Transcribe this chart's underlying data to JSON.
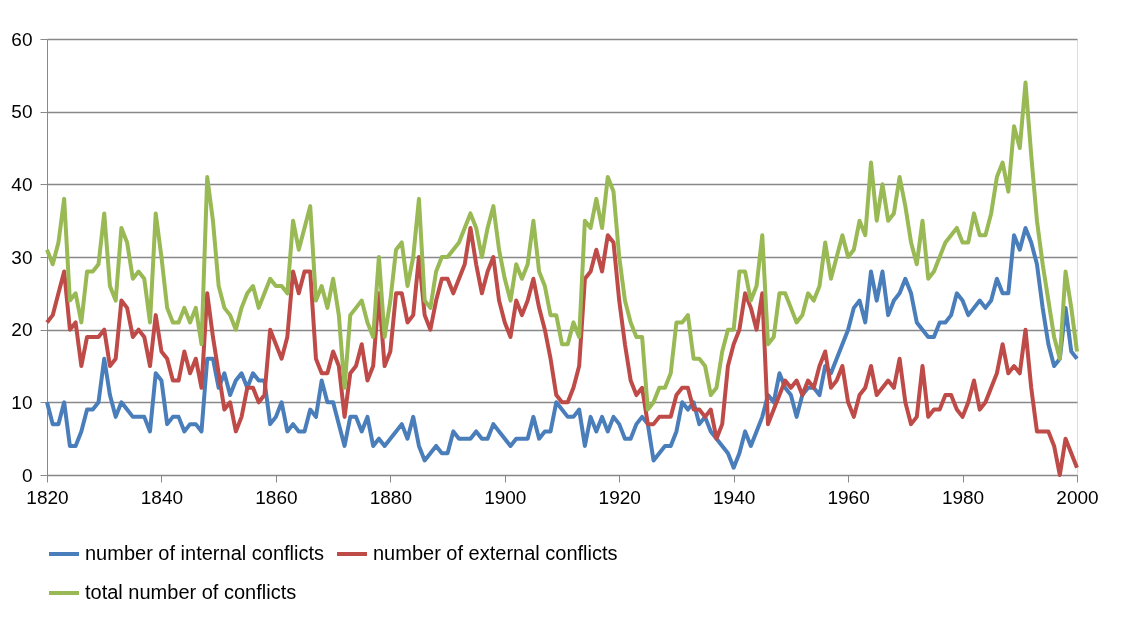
{
  "chart_data": {
    "type": "line",
    "x": [
      1820,
      1821,
      1822,
      1823,
      1824,
      1825,
      1826,
      1827,
      1828,
      1829,
      1830,
      1831,
      1832,
      1833,
      1834,
      1835,
      1836,
      1837,
      1838,
      1839,
      1840,
      1841,
      1842,
      1843,
      1844,
      1845,
      1846,
      1847,
      1848,
      1849,
      1850,
      1851,
      1852,
      1853,
      1854,
      1855,
      1856,
      1857,
      1858,
      1859,
      1860,
      1861,
      1862,
      1863,
      1864,
      1865,
      1866,
      1867,
      1868,
      1869,
      1870,
      1871,
      1872,
      1873,
      1874,
      1875,
      1876,
      1877,
      1878,
      1879,
      1880,
      1881,
      1882,
      1883,
      1884,
      1885,
      1886,
      1887,
      1888,
      1889,
      1890,
      1891,
      1892,
      1893,
      1894,
      1895,
      1896,
      1897,
      1898,
      1899,
      1900,
      1901,
      1902,
      1903,
      1904,
      1905,
      1906,
      1907,
      1908,
      1909,
      1910,
      1911,
      1912,
      1913,
      1914,
      1915,
      1916,
      1917,
      1918,
      1919,
      1920,
      1921,
      1922,
      1923,
      1924,
      1925,
      1926,
      1927,
      1928,
      1929,
      1930,
      1931,
      1932,
      1933,
      1934,
      1935,
      1936,
      1937,
      1938,
      1939,
      1940,
      1941,
      1942,
      1943,
      1944,
      1945,
      1946,
      1947,
      1948,
      1949,
      1950,
      1951,
      1952,
      1953,
      1954,
      1955,
      1956,
      1957,
      1958,
      1959,
      1960,
      1961,
      1962,
      1963,
      1964,
      1965,
      1966,
      1967,
      1968,
      1969,
      1970,
      1971,
      1972,
      1973,
      1974,
      1975,
      1976,
      1977,
      1978,
      1979,
      1980,
      1981,
      1982,
      1983,
      1984,
      1985,
      1986,
      1987,
      1988,
      1989,
      1990,
      1991,
      1992,
      1993,
      1994,
      1995,
      1996,
      1997,
      1998,
      1999,
      2000
    ],
    "series": [
      {
        "name": "number of internal conflicts",
        "color": "#4a7ebb",
        "values": [
          10,
          7,
          7,
          10,
          4,
          4,
          6,
          9,
          9,
          10,
          16,
          11,
          8,
          10,
          9,
          8,
          8,
          8,
          6,
          14,
          13,
          7,
          8,
          8,
          6,
          7,
          7,
          6,
          16,
          16,
          12,
          14,
          11,
          13,
          14,
          12,
          14,
          13,
          13,
          7,
          8,
          10,
          6,
          7,
          6,
          6,
          9,
          8,
          13,
          10,
          10,
          7,
          4,
          8,
          8,
          6,
          8,
          4,
          5,
          4,
          5,
          6,
          7,
          5,
          8,
          4,
          2,
          3,
          4,
          3,
          3,
          6,
          5,
          5,
          5,
          6,
          5,
          5,
          7,
          6,
          5,
          4,
          5,
          5,
          5,
          8,
          5,
          6,
          6,
          10,
          9,
          8,
          8,
          9,
          4,
          8,
          6,
          8,
          6,
          8,
          7,
          5,
          5,
          7,
          8,
          7,
          2,
          3,
          4,
          4,
          6,
          10,
          9,
          10,
          7,
          8,
          6,
          5,
          4,
          3,
          1,
          3,
          6,
          4,
          6,
          8,
          11,
          10,
          14,
          12,
          11,
          8,
          11,
          12,
          12,
          11,
          15,
          14,
          16,
          18,
          20,
          23,
          24,
          21,
          28,
          24,
          28,
          22,
          24,
          25,
          27,
          25,
          21,
          20,
          19,
          19,
          21,
          21,
          22,
          25,
          24,
          22,
          23,
          24,
          23,
          24,
          27,
          25,
          25,
          33,
          31,
          34,
          32,
          29,
          23,
          18,
          15,
          16,
          23,
          17,
          16
        ]
      },
      {
        "name": "number of external conflicts",
        "color": "#be4b48",
        "values": [
          21,
          22,
          25,
          28,
          20,
          21,
          15,
          19,
          19,
          19,
          20,
          15,
          16,
          24,
          23,
          19,
          20,
          19,
          15,
          22,
          17,
          16,
          13,
          13,
          17,
          14,
          16,
          12,
          25,
          19,
          14,
          9,
          10,
          6,
          8,
          12,
          12,
          10,
          11,
          20,
          18,
          16,
          19,
          28,
          25,
          28,
          28,
          16,
          14,
          14,
          17,
          15,
          8,
          14,
          15,
          18,
          13,
          15,
          25,
          15,
          17,
          25,
          25,
          21,
          22,
          30,
          22,
          20,
          24,
          27,
          27,
          25,
          27,
          29,
          34,
          29,
          25,
          28,
          30,
          24,
          21,
          19,
          24,
          22,
          24,
          27,
          23,
          20,
          16,
          11,
          10,
          10,
          12,
          15,
          27,
          28,
          31,
          28,
          33,
          32,
          24,
          18,
          13,
          11,
          12,
          7,
          7,
          8,
          8,
          8,
          11,
          12,
          12,
          9,
          9,
          8,
          9,
          5,
          7,
          15,
          18,
          20,
          25,
          23,
          20,
          25,
          7,
          9,
          11,
          13,
          12,
          13,
          11,
          13,
          12,
          15,
          17,
          12,
          13,
          15,
          10,
          8,
          11,
          12,
          15,
          11,
          12,
          13,
          12,
          16,
          10,
          7,
          8,
          15,
          8,
          9,
          9,
          11,
          11,
          9,
          8,
          10,
          13,
          9,
          10,
          12,
          14,
          18,
          14,
          15,
          14,
          20,
          12,
          6,
          6,
          6,
          4,
          0,
          5,
          3,
          1
        ]
      },
      {
        "name": "total number of conflicts",
        "color": "#98b954",
        "values": [
          31,
          29,
          32,
          38,
          24,
          25,
          21,
          28,
          28,
          29,
          36,
          26,
          24,
          34,
          32,
          27,
          28,
          27,
          21,
          36,
          30,
          23,
          21,
          21,
          23,
          21,
          23,
          18,
          41,
          35,
          26,
          23,
          22,
          20,
          23,
          25,
          26,
          23,
          25,
          27,
          26,
          26,
          25,
          35,
          31,
          34,
          37,
          24,
          26,
          23,
          27,
          22,
          12,
          22,
          23,
          24,
          21,
          19,
          30,
          19,
          24,
          31,
          32,
          26,
          30,
          38,
          24,
          23,
          28,
          30,
          30,
          31,
          32,
          34,
          36,
          34,
          30,
          34,
          37,
          31,
          27,
          24,
          29,
          27,
          29,
          35,
          28,
          26,
          22,
          22,
          18,
          18,
          21,
          19,
          35,
          34,
          38,
          34,
          41,
          39,
          30,
          24,
          21,
          19,
          19,
          9,
          10,
          12,
          12,
          14,
          21,
          21,
          22,
          16,
          16,
          15,
          11,
          12,
          17,
          20,
          20,
          28,
          28,
          24,
          26,
          33,
          18,
          19,
          25,
          25,
          23,
          21,
          22,
          25,
          24,
          26,
          32,
          27,
          30,
          33,
          30,
          31,
          35,
          33,
          43,
          35,
          40,
          35,
          36,
          41,
          37,
          32,
          29,
          35,
          27,
          28,
          30,
          32,
          33,
          34,
          32,
          32,
          36,
          33,
          33,
          36,
          41,
          43,
          39,
          48,
          45,
          54,
          44,
          35,
          29,
          24,
          19,
          16,
          28,
          23,
          17
        ]
      }
    ],
    "xlim": [
      1820,
      2000
    ],
    "xticks": [
      1820,
      1840,
      1860,
      1880,
      1900,
      1920,
      1940,
      1960,
      1980,
      2000
    ],
    "ylim": [
      0,
      60
    ],
    "yticks": [
      0,
      10,
      20,
      30,
      40,
      50,
      60
    ],
    "grid": "y",
    "legend": "bottom",
    "marker": "none",
    "line_style": "solid"
  }
}
